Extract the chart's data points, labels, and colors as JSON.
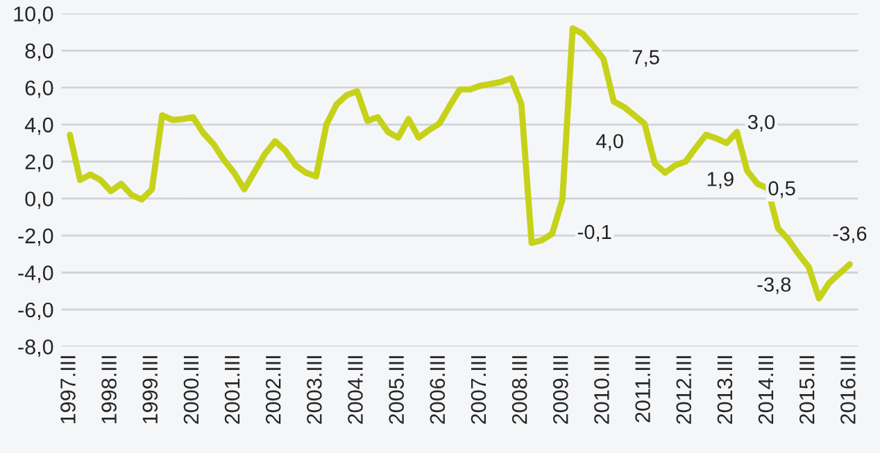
{
  "chart_data": {
    "type": "line",
    "x": [
      1997.5,
      1997.75,
      1998,
      1998.25,
      1998.5,
      1998.75,
      1999,
      1999.25,
      1999.5,
      1999.75,
      2000,
      2000.25,
      2000.5,
      2000.75,
      2001,
      2001.25,
      2001.5,
      2001.75,
      2002,
      2002.25,
      2002.5,
      2002.75,
      2003,
      2003.25,
      2003.5,
      2003.75,
      2004,
      2004.25,
      2004.5,
      2004.75,
      2005,
      2005.25,
      2005.5,
      2005.75,
      2006,
      2006.25,
      2006.5,
      2006.75,
      2007,
      2007.25,
      2007.5,
      2007.75,
      2008,
      2008.25,
      2008.5,
      2008.75,
      2009,
      2009.25,
      2009.5,
      2009.75,
      2010,
      2010.25,
      2010.5,
      2010.75,
      2011,
      2011.25,
      2011.5,
      2011.75,
      2012,
      2012.25,
      2012.5,
      2012.75,
      2013,
      2013.25,
      2013.5,
      2013.75,
      2014,
      2014.25,
      2014.5,
      2014.75,
      2015,
      2015.25,
      2015.5,
      2015.75,
      2016,
      2016.25,
      2016.5
    ],
    "series": [
      {
        "color": "#c6d21a",
        "values": [
          3.45,
          1.0,
          1.3,
          1.0,
          0.4,
          0.8,
          0.2,
          -0.05,
          0.5,
          4.5,
          4.25,
          4.3,
          4.4,
          3.55,
          2.95,
          2.1,
          1.4,
          0.5,
          1.45,
          2.4,
          3.1,
          2.6,
          1.8,
          1.4,
          1.2,
          4.0,
          5.1,
          5.6,
          5.8,
          4.2,
          4.4,
          3.6,
          3.3,
          4.3,
          3.3,
          3.7,
          4.05,
          5.0,
          5.9,
          5.9,
          6.1,
          6.2,
          6.3,
          6.5,
          5.1,
          -2.4,
          -2.25,
          -1.9,
          -0.05,
          9.2,
          8.9,
          8.25,
          7.55,
          5.25,
          4.95,
          4.5,
          4.05,
          1.9,
          1.4,
          1.8,
          2.0,
          2.75,
          3.45,
          3.25,
          3.0,
          3.6,
          1.5,
          0.8,
          0.55,
          -1.6,
          -2.2,
          -3.0,
          -3.7,
          -5.4,
          -4.55,
          -4.05,
          -3.55
        ]
      }
    ],
    "annotations": [
      {
        "text": "7,5",
        "x": 2010.5,
        "y": 7.55
      },
      {
        "text": "-0,1",
        "x": 2009.25,
        "y": -1.9
      },
      {
        "text": "4,0",
        "x": 2011.5,
        "y": 4.05
      },
      {
        "text": "1,9",
        "x": 2012.5,
        "y": 2.0
      },
      {
        "text": "3,0",
        "x": 2013.5,
        "y": 3.0
      },
      {
        "text": "0,5",
        "x": 2014.0,
        "y": 1.5
      },
      {
        "text": "-3,8",
        "x": 2015.5,
        "y": -3.7
      },
      {
        "text": "-3,6",
        "x": 2016.5,
        "y": -3.55
      }
    ],
    "xlim": [
      1997.3,
      2016.7
    ],
    "xticks": [
      {
        "value": 1997.5,
        "label": "1997.III"
      },
      {
        "value": 1998.5,
        "label": "1998.III"
      },
      {
        "value": 1999.5,
        "label": "1999.III"
      },
      {
        "value": 2000.5,
        "label": "2000.III"
      },
      {
        "value": 2001.5,
        "label": "2001.III"
      },
      {
        "value": 2002.5,
        "label": "2002.III"
      },
      {
        "value": 2003.5,
        "label": "2003.III"
      },
      {
        "value": 2004.5,
        "label": "2004.III"
      },
      {
        "value": 2005.5,
        "label": "2005.III"
      },
      {
        "value": 2006.5,
        "label": "2006.III"
      },
      {
        "value": 2007.5,
        "label": "2007.III"
      },
      {
        "value": 2008.5,
        "label": "2008.III"
      },
      {
        "value": 2009.5,
        "label": "2009.III"
      },
      {
        "value": 2010.5,
        "label": "2010.III"
      },
      {
        "value": 2011.5,
        "label": "2011.III"
      },
      {
        "value": 2012.5,
        "label": "2012.III"
      },
      {
        "value": 2013.5,
        "label": "2013.III"
      },
      {
        "value": 2014.5,
        "label": "2014.III"
      },
      {
        "value": 2015.5,
        "label": "2015.III"
      },
      {
        "value": 2016.5,
        "label": "2016.III"
      }
    ],
    "ylim": [
      -8,
      10
    ],
    "yticks": [
      {
        "value": -8,
        "label": "-8,0"
      },
      {
        "value": -6,
        "label": "-6,0"
      },
      {
        "value": -4,
        "label": "-4,0"
      },
      {
        "value": -2,
        "label": "-2,0"
      },
      {
        "value": 0,
        "label": "0,0"
      },
      {
        "value": 2,
        "label": "2,0"
      },
      {
        "value": 4,
        "label": "4,0"
      },
      {
        "value": 6,
        "label": "6,0"
      },
      {
        "value": 8,
        "label": "8,0"
      },
      {
        "value": 10,
        "label": "10,0"
      }
    ],
    "grid": "y",
    "marker": "none",
    "line_style": "solid"
  }
}
